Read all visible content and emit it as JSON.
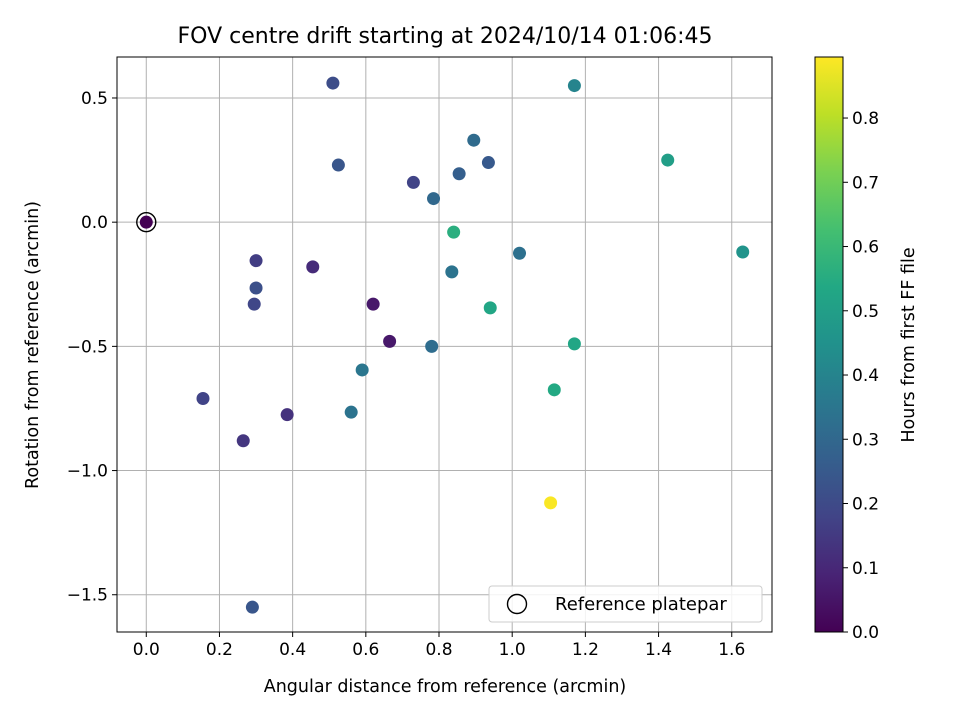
{
  "chart_data": {
    "type": "scatter",
    "title": "FOV centre drift starting at 2024/10/14 01:06:45",
    "xlabel": "Angular distance from reference (arcmin)",
    "ylabel": "Rotation from reference (arcmin)",
    "xlim": [
      -0.08,
      1.71
    ],
    "ylim": [
      -1.65,
      0.665
    ],
    "xticks": [
      0.0,
      0.2,
      0.4,
      0.6,
      0.8,
      1.0,
      1.2,
      1.4,
      1.6
    ],
    "xtick_labels": [
      "0.0",
      "0.2",
      "0.4",
      "0.6",
      "0.8",
      "1.0",
      "1.2",
      "1.4",
      "1.6"
    ],
    "yticks": [
      -1.5,
      -1.0,
      -0.5,
      0.0,
      0.5
    ],
    "ytick_labels": [
      "−1.5",
      "−1.0",
      "−0.5",
      "0.0",
      "0.5"
    ],
    "grid": true,
    "legend": {
      "placement": "lower-right",
      "label": "Reference platepar"
    },
    "reference": {
      "x": 0.0,
      "y": 0.0
    },
    "colorbar": {
      "label": "Hours from first FF file",
      "min": 0.0,
      "max": 0.895,
      "colormap": "viridis",
      "ticks": [
        0.0,
        0.1,
        0.2,
        0.3,
        0.4,
        0.5,
        0.6,
        0.7,
        0.8
      ],
      "tick_labels": [
        "0.0",
        "0.1",
        "0.2",
        "0.3",
        "0.4",
        "0.5",
        "0.6",
        "0.7",
        "0.8"
      ]
    },
    "points": [
      {
        "x": 0.0,
        "y": 0.0,
        "c": 0.0
      },
      {
        "x": 0.51,
        "y": 0.56,
        "c": 0.21
      },
      {
        "x": 1.17,
        "y": 0.55,
        "c": 0.4
      },
      {
        "x": 0.895,
        "y": 0.33,
        "c": 0.31
      },
      {
        "x": 0.525,
        "y": 0.23,
        "c": 0.24
      },
      {
        "x": 0.935,
        "y": 0.24,
        "c": 0.25
      },
      {
        "x": 1.425,
        "y": 0.25,
        "c": 0.5
      },
      {
        "x": 0.73,
        "y": 0.16,
        "c": 0.18
      },
      {
        "x": 0.855,
        "y": 0.195,
        "c": 0.27
      },
      {
        "x": 0.785,
        "y": 0.095,
        "c": 0.3
      },
      {
        "x": 0.84,
        "y": -0.04,
        "c": 0.56
      },
      {
        "x": 1.02,
        "y": -0.125,
        "c": 0.33
      },
      {
        "x": 1.63,
        "y": -0.12,
        "c": 0.46
      },
      {
        "x": 0.3,
        "y": -0.155,
        "c": 0.16
      },
      {
        "x": 0.455,
        "y": -0.18,
        "c": 0.11
      },
      {
        "x": 0.835,
        "y": -0.2,
        "c": 0.34
      },
      {
        "x": 0.3,
        "y": -0.265,
        "c": 0.22
      },
      {
        "x": 0.295,
        "y": -0.33,
        "c": 0.19
      },
      {
        "x": 0.62,
        "y": -0.33,
        "c": 0.06
      },
      {
        "x": 0.94,
        "y": -0.345,
        "c": 0.53
      },
      {
        "x": 0.665,
        "y": -0.48,
        "c": 0.06
      },
      {
        "x": 0.78,
        "y": -0.5,
        "c": 0.32
      },
      {
        "x": 1.17,
        "y": -0.49,
        "c": 0.53
      },
      {
        "x": 0.59,
        "y": -0.595,
        "c": 0.35
      },
      {
        "x": 1.115,
        "y": -0.675,
        "c": 0.54
      },
      {
        "x": 0.155,
        "y": -0.71,
        "c": 0.18
      },
      {
        "x": 0.56,
        "y": -0.765,
        "c": 0.34
      },
      {
        "x": 0.385,
        "y": -0.775,
        "c": 0.13
      },
      {
        "x": 0.265,
        "y": -0.88,
        "c": 0.14
      },
      {
        "x": 1.105,
        "y": -1.13,
        "c": 0.89
      },
      {
        "x": 0.29,
        "y": -1.55,
        "c": 0.24
      }
    ]
  }
}
